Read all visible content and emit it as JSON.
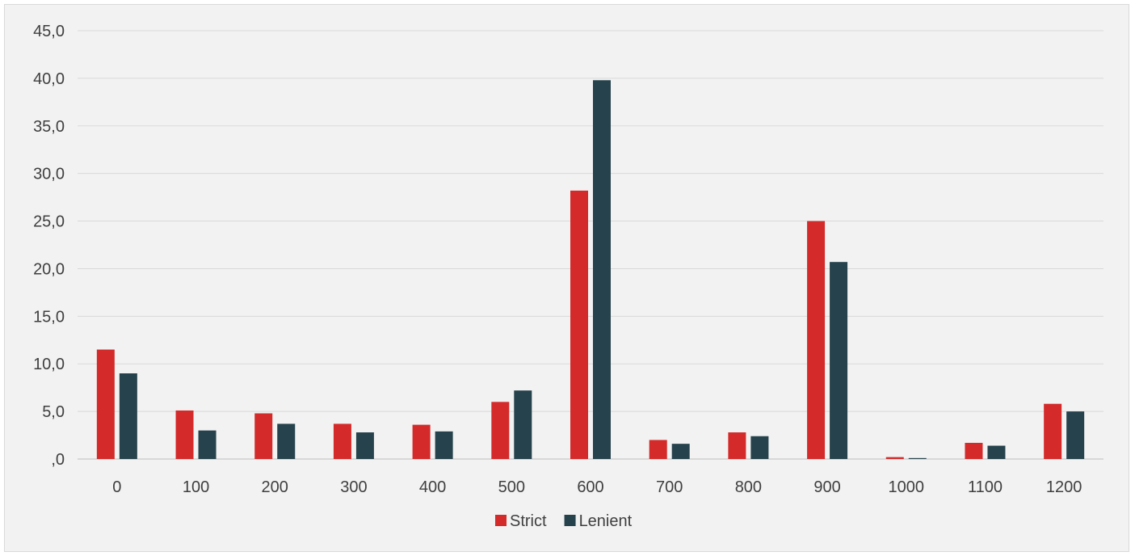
{
  "chart_data": {
    "type": "bar",
    "title": "",
    "xlabel": "",
    "ylabel": "",
    "categories": [
      "0",
      "100",
      "200",
      "300",
      "400",
      "500",
      "600",
      "700",
      "800",
      "900",
      "1000",
      "1100",
      "1200"
    ],
    "series": [
      {
        "name": "Strict",
        "color": "#d42a2a",
        "values": [
          11.5,
          5.1,
          4.8,
          3.7,
          3.6,
          6.0,
          28.2,
          2.0,
          2.8,
          25.0,
          0.2,
          1.7,
          5.8
        ]
      },
      {
        "name": "Lenient",
        "color": "#26424c",
        "values": [
          9.0,
          3.0,
          3.7,
          2.8,
          2.9,
          7.2,
          39.8,
          1.6,
          2.4,
          20.7,
          0.1,
          1.4,
          5.0
        ]
      }
    ],
    "ylim": [
      0,
      45
    ],
    "yticks": [
      ",0",
      "5,0",
      "10,0",
      "15,0",
      "20,0",
      "25,0",
      "30,0",
      "35,0",
      "40,0",
      "45,0"
    ],
    "grid": true,
    "legend_position": "bottom"
  }
}
